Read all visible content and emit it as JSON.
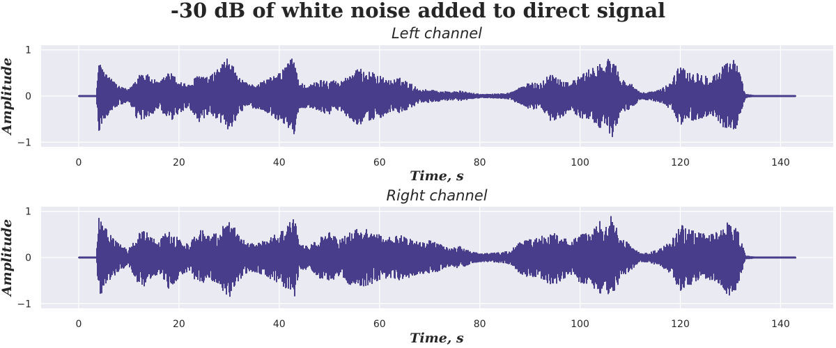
{
  "figure": {
    "title": "-30 dB of white noise added to direct signal"
  },
  "chart_data": [
    {
      "type": "line",
      "title": "Left channel",
      "xlabel": "Time, s",
      "ylabel": "Amplitude",
      "xlim": [
        -7.5,
        150.5
      ],
      "ylim": [
        -1.1,
        1.1
      ],
      "xticks": [
        0,
        20,
        40,
        60,
        80,
        100,
        120,
        140
      ],
      "xtick_labels": [
        "0",
        "20",
        "40",
        "60",
        "80",
        "100",
        "120",
        "140"
      ],
      "yticks": [
        1,
        0,
        -1
      ],
      "ytick_labels": [
        "1",
        "0",
        "−1"
      ],
      "grid": true,
      "color": "#483d8b",
      "series": [
        {
          "x": [
            0,
            3.5,
            4,
            5,
            6,
            8,
            10,
            12,
            13,
            14,
            16,
            18,
            20,
            22,
            24,
            26,
            28,
            30,
            32,
            34,
            36,
            38,
            40,
            42,
            43,
            44,
            46,
            48,
            50,
            52,
            54,
            56,
            58,
            60,
            62,
            64,
            66,
            68,
            70,
            72,
            74,
            76,
            78,
            80,
            82,
            84,
            86,
            88,
            90,
            92,
            94,
            96,
            98,
            100,
            102,
            104,
            105,
            106,
            107,
            108,
            110,
            112,
            114,
            116,
            118,
            120,
            122,
            124,
            126,
            128,
            129,
            130,
            131,
            132,
            133,
            135,
            143
          ],
          "upper": [
            0.01,
            0.02,
            0.85,
            0.55,
            0.45,
            0.22,
            0.15,
            0.5,
            0.55,
            0.45,
            0.3,
            0.55,
            0.35,
            0.25,
            0.5,
            0.4,
            0.65,
            0.85,
            0.4,
            0.25,
            0.3,
            0.4,
            0.5,
            0.8,
            0.85,
            0.3,
            0.25,
            0.35,
            0.4,
            0.3,
            0.5,
            0.6,
            0.55,
            0.45,
            0.35,
            0.4,
            0.3,
            0.15,
            0.15,
            0.12,
            0.1,
            0.12,
            0.08,
            0.05,
            0.05,
            0.06,
            0.08,
            0.2,
            0.3,
            0.28,
            0.5,
            0.4,
            0.3,
            0.45,
            0.6,
            0.8,
            0.55,
            1.0,
            0.75,
            0.4,
            0.3,
            0.08,
            0.1,
            0.15,
            0.3,
            0.7,
            0.55,
            0.5,
            0.45,
            0.55,
            0.8,
            0.85,
            0.8,
            0.45,
            0.05,
            0.02,
            0.02
          ],
          "lower": [
            -0.01,
            -0.02,
            -0.8,
            -0.55,
            -0.4,
            -0.2,
            -0.15,
            -0.6,
            -0.55,
            -0.45,
            -0.3,
            -0.6,
            -0.4,
            -0.25,
            -0.6,
            -0.45,
            -0.55,
            -0.78,
            -0.4,
            -0.25,
            -0.3,
            -0.4,
            -0.55,
            -0.72,
            -0.85,
            -0.3,
            -0.25,
            -0.35,
            -0.4,
            -0.3,
            -0.5,
            -0.65,
            -0.55,
            -0.5,
            -0.35,
            -0.4,
            -0.3,
            -0.15,
            -0.15,
            -0.12,
            -0.1,
            -0.12,
            -0.08,
            -0.05,
            -0.05,
            -0.06,
            -0.08,
            -0.2,
            -0.3,
            -0.28,
            -0.55,
            -0.5,
            -0.3,
            -0.5,
            -0.5,
            -0.7,
            -0.6,
            -1.0,
            -0.75,
            -0.4,
            -0.3,
            -0.08,
            -0.1,
            -0.15,
            -0.3,
            -0.65,
            -0.55,
            -0.5,
            -0.45,
            -0.6,
            -0.75,
            -0.8,
            -0.75,
            -0.4,
            -0.05,
            -0.02,
            -0.02
          ]
        }
      ]
    },
    {
      "type": "line",
      "title": "Right channel",
      "xlabel": "Time, s",
      "ylabel": "Amplitude",
      "xlim": [
        -7.5,
        150.5
      ],
      "ylim": [
        -1.1,
        1.1
      ],
      "xticks": [
        0,
        20,
        40,
        60,
        80,
        100,
        120,
        140
      ],
      "xtick_labels": [
        "0",
        "20",
        "40",
        "60",
        "80",
        "100",
        "120",
        "140"
      ],
      "yticks": [
        1,
        0,
        -1
      ],
      "ytick_labels": [
        "1",
        "0",
        "−1"
      ],
      "grid": true,
      "color": "#483d8b",
      "series": [
        {
          "x": [
            0,
            3.5,
            4,
            5,
            6,
            8,
            10,
            12,
            13,
            14,
            16,
            18,
            20,
            22,
            24,
            26,
            28,
            30,
            32,
            34,
            36,
            38,
            40,
            42,
            43,
            44,
            46,
            48,
            50,
            52,
            54,
            56,
            58,
            60,
            62,
            64,
            66,
            68,
            70,
            72,
            74,
            76,
            78,
            80,
            82,
            84,
            86,
            88,
            90,
            92,
            94,
            96,
            98,
            100,
            102,
            104,
            105,
            106,
            107,
            108,
            110,
            112,
            114,
            116,
            118,
            120,
            122,
            124,
            126,
            128,
            129,
            130,
            131,
            132,
            133,
            135,
            143
          ],
          "upper": [
            0.01,
            0.02,
            0.9,
            0.7,
            0.55,
            0.3,
            0.2,
            0.55,
            0.65,
            0.5,
            0.35,
            0.65,
            0.4,
            0.3,
            0.65,
            0.5,
            0.6,
            0.9,
            0.5,
            0.3,
            0.35,
            0.45,
            0.55,
            0.75,
            0.9,
            0.3,
            0.25,
            0.45,
            0.55,
            0.4,
            0.55,
            0.65,
            0.6,
            0.5,
            0.45,
            0.5,
            0.45,
            0.35,
            0.4,
            0.3,
            0.2,
            0.25,
            0.15,
            0.1,
            0.1,
            0.12,
            0.15,
            0.35,
            0.4,
            0.45,
            0.55,
            0.5,
            0.35,
            0.5,
            0.55,
            0.8,
            0.6,
            1.0,
            0.8,
            0.45,
            0.3,
            0.1,
            0.12,
            0.2,
            0.35,
            0.75,
            0.6,
            0.55,
            0.5,
            0.6,
            0.75,
            0.8,
            0.7,
            0.45,
            0.05,
            0.02,
            0.02
          ],
          "lower": [
            -0.01,
            -0.02,
            -0.9,
            -0.7,
            -0.55,
            -0.3,
            -0.2,
            -0.6,
            -0.65,
            -0.5,
            -0.35,
            -0.7,
            -0.45,
            -0.3,
            -0.65,
            -0.5,
            -0.6,
            -0.92,
            -0.5,
            -0.3,
            -0.35,
            -0.45,
            -0.6,
            -0.75,
            -0.9,
            -0.3,
            -0.25,
            -0.45,
            -0.55,
            -0.4,
            -0.6,
            -0.65,
            -0.6,
            -0.5,
            -0.45,
            -0.5,
            -0.45,
            -0.35,
            -0.4,
            -0.3,
            -0.2,
            -0.25,
            -0.15,
            -0.1,
            -0.1,
            -0.12,
            -0.15,
            -0.35,
            -0.45,
            -0.45,
            -0.6,
            -0.55,
            -0.35,
            -0.55,
            -0.6,
            -0.8,
            -0.65,
            -1.0,
            -0.8,
            -0.45,
            -0.3,
            -0.1,
            -0.12,
            -0.2,
            -0.35,
            -0.75,
            -0.6,
            -0.55,
            -0.5,
            -0.6,
            -0.8,
            -0.85,
            -0.75,
            -0.45,
            -0.05,
            -0.02,
            -0.02
          ]
        }
      ]
    }
  ]
}
